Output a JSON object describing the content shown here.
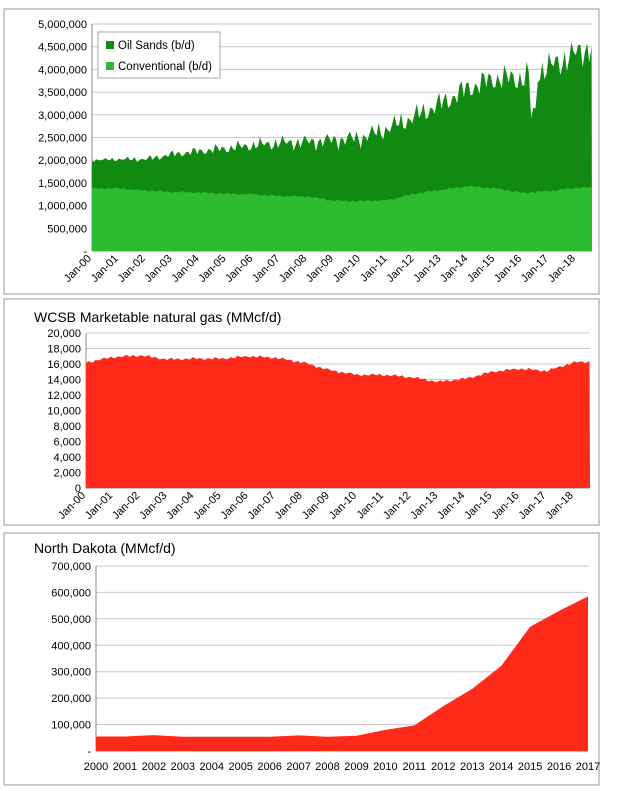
{
  "colors": {
    "oil_sands": "#108a10",
    "conventional": "#2dbb32",
    "wcsb_gas": "#ff2a1a",
    "north_dakota": "#ff2a1a",
    "grid": "#c8c8c8",
    "panel_border": "#999999"
  },
  "chart_data": [
    {
      "type": "area",
      "stacked": true,
      "title": "",
      "x_start_year": 2000,
      "x_end_year": 2018.6,
      "tick_labels": [
        "Jan-00",
        "Jan-01",
        "Jan-02",
        "Jan-03",
        "Jan-04",
        "Jan-05",
        "Jan-06",
        "Jan-07",
        "Jan-08",
        "Jan-09",
        "Jan-10",
        "Jan-11",
        "Jan-12",
        "Jan-13",
        "Jan-14",
        "Jan-15",
        "Jan-16",
        "Jan-17",
        "Jan-18"
      ],
      "ylim": [
        0,
        5000000
      ],
      "yticks": [
        0,
        500000,
        1000000,
        1500000,
        2000000,
        2500000,
        3000000,
        3500000,
        4000000,
        4500000,
        5000000
      ],
      "ytick_labels": [
        "-",
        "500,000",
        "1,000,000",
        "1,500,000",
        "2,000,000",
        "2,500,000",
        "3,000,000",
        "3,500,000",
        "4,000,000",
        "4,500,000",
        "5,000,000"
      ],
      "legend": [
        "Oil Sands (b/d)",
        "Conventional (b/d)"
      ],
      "series": [
        {
          "name": "Conventional (b/d)",
          "x": [
            2000,
            2001,
            2002,
            2003,
            2004,
            2005,
            2006,
            2007,
            2008,
            2009,
            2010,
            2011,
            2012,
            2013,
            2014,
            2015,
            2016,
            2017,
            2018,
            2018.6
          ],
          "values": [
            1380000,
            1380000,
            1330000,
            1300000,
            1290000,
            1260000,
            1250000,
            1210000,
            1200000,
            1110000,
            1100000,
            1120000,
            1260000,
            1350000,
            1430000,
            1380000,
            1280000,
            1320000,
            1390000,
            1400000
          ]
        },
        {
          "name": "Oil Sands (b/d)",
          "x": [
            2000,
            2001,
            2002,
            2003,
            2004,
            2005,
            2006,
            2007,
            2008,
            2009,
            2010,
            2011,
            2012,
            2013,
            2014,
            2015,
            2016,
            2017,
            2018,
            2018.6
          ],
          "values": [
            620000,
            640000,
            690000,
            830000,
            910000,
            1000000,
            1080000,
            1170000,
            1200000,
            1330000,
            1390000,
            1580000,
            1700000,
            1900000,
            2160000,
            2420000,
            2520000,
            2730000,
            2960000,
            3100000
          ]
        }
      ]
    },
    {
      "type": "area",
      "title": "WCSB Marketable natural gas (MMcf/d)",
      "x_start_year": 2000,
      "x_end_year": 2018.6,
      "tick_labels": [
        "Jan-00",
        "Jan-01",
        "Jan-02",
        "Jan-03",
        "Jan-04",
        "Jan-05",
        "Jan-06",
        "Jan-07",
        "Jan-08",
        "Jan-09",
        "Jan-10",
        "Jan-11",
        "Jan-12",
        "Jan-13",
        "Jan-14",
        "Jan-15",
        "Jan-16",
        "Jan-17",
        "Jan-18"
      ],
      "ylim": [
        0,
        20000
      ],
      "yticks": [
        0,
        2000,
        4000,
        6000,
        8000,
        10000,
        12000,
        14000,
        16000,
        18000,
        20000
      ],
      "ytick_labels": [
        "0",
        "2,000",
        "4,000",
        "6,000",
        "8,000",
        "10,000",
        "12,000",
        "14,000",
        "16,000",
        "18,000",
        "20,000"
      ],
      "series": [
        {
          "name": "WCSB Marketable natural gas",
          "x": [
            2000,
            2001,
            2002,
            2003,
            2004,
            2005,
            2006,
            2007,
            2008,
            2009,
            2010,
            2011,
            2012,
            2013,
            2014,
            2015,
            2016,
            2017,
            2018,
            2018.6
          ],
          "values": [
            16200,
            16900,
            17100,
            16600,
            16700,
            16700,
            17000,
            16800,
            16200,
            15200,
            14600,
            14600,
            14300,
            13700,
            14100,
            15000,
            15400,
            15100,
            16200,
            16300
          ]
        }
      ]
    },
    {
      "type": "area",
      "title": "North Dakota (MMcf/d)",
      "categories": [
        "2000",
        "2001",
        "2002",
        "2003",
        "2004",
        "2005",
        "2006",
        "2007",
        "2008",
        "2009",
        "2010",
        "2011",
        "2012",
        "2013",
        "2014",
        "2015",
        "2016",
        "2017"
      ],
      "ylim": [
        0,
        700000
      ],
      "yticks": [
        0,
        100000,
        200000,
        300000,
        400000,
        500000,
        600000,
        700000
      ],
      "ytick_labels": [
        "-",
        "100,000",
        "200,000",
        "300,000",
        "400,000",
        "500,000",
        "600,000",
        "700,000"
      ],
      "series": [
        {
          "name": "North Dakota",
          "values": [
            55000,
            55000,
            60000,
            54000,
            54000,
            54000,
            54000,
            59000,
            54000,
            58000,
            80000,
            97000,
            170000,
            235000,
            322000,
            470000,
            530000,
            585000
          ]
        }
      ]
    }
  ]
}
